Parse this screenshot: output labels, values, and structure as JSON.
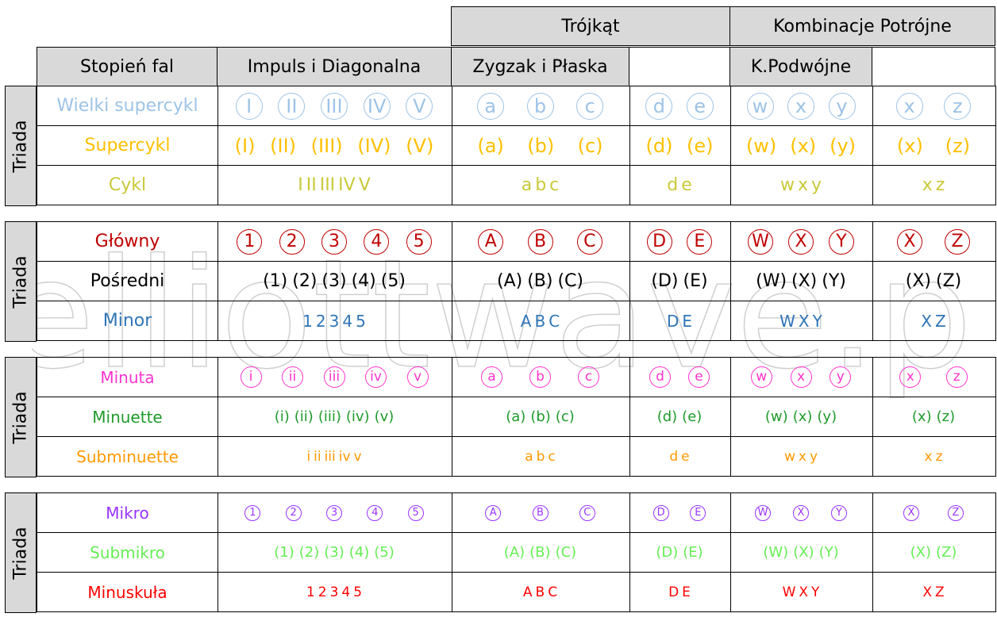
{
  "colors": {
    "header_bg": "#d9d9d9",
    "wielki": "#9dc3e6",
    "supercykl": "#ffc000",
    "cykl": "#c9c93a",
    "glowny": "#c00000",
    "posredni": "#000000",
    "minor": "#2e75b6",
    "minuta": "#ff33cc",
    "minuette": "#1f9a2a",
    "subminuette": "#ff9900",
    "mikro": "#9933ff",
    "submikro": "#66ee55",
    "minuskula": "#ff0000"
  },
  "header": {
    "trojkat": "Trójkąt",
    "kombinacje": "Kombinacje Potrójne",
    "stopien": "Stopień fal",
    "impuls": "Impuls i Diagonalna",
    "zygzak": "Zygzak i Płaska",
    "kpodwojne": "K.Podwójne"
  },
  "watermark": "elliottwave.pl",
  "blocks": [
    {
      "side": "Triada",
      "rows": [
        {
          "label": "Wielki supercykl",
          "color": "wielki",
          "style": "circle-big",
          "impuls": [
            "I",
            "II",
            "III",
            "IV",
            "V"
          ],
          "zygzak": [
            "a",
            "b",
            "c"
          ],
          "trojkat": [
            "d",
            "e"
          ],
          "podwojne": [
            "w",
            "x",
            "y"
          ],
          "potrojne": [
            "x",
            "z"
          ]
        },
        {
          "label": "Supercykl",
          "color": "supercykl",
          "style": "paren-big",
          "impuls": [
            "(I)",
            "(II)",
            "(III)",
            "(IV)",
            "(V)"
          ],
          "zygzak": [
            "(a)",
            "(b)",
            "(c)"
          ],
          "trojkat": [
            "(d)",
            "(e)"
          ],
          "podwojne": [
            "(w)",
            "(x)",
            "(y)"
          ],
          "potrojne": [
            "(x)",
            "(z)"
          ]
        },
        {
          "label": "Cykl",
          "color": "cykl",
          "style": "plain-big",
          "impuls": [
            "I",
            "II",
            "III",
            "IV",
            "V"
          ],
          "zygzak": [
            "a",
            "b",
            "c"
          ],
          "trojkat": [
            "d",
            "e"
          ],
          "podwojne": [
            "w",
            "x",
            "y"
          ],
          "potrojne": [
            "x",
            "z"
          ]
        }
      ]
    },
    {
      "side": "Triada",
      "rows": [
        {
          "label": "Główny",
          "color": "glowny",
          "style": "circle-med",
          "impuls": [
            "1",
            "2",
            "3",
            "4",
            "5"
          ],
          "zygzak": [
            "A",
            "B",
            "C"
          ],
          "trojkat": [
            "D",
            "E"
          ],
          "podwojne": [
            "W",
            "X",
            "Y"
          ],
          "potrojne": [
            "X",
            "Z"
          ]
        },
        {
          "label": "Pośredni",
          "color": "posredni",
          "style": "paren-med",
          "impuls": [
            "(1)",
            "(2)",
            "(3)",
            "(4)",
            "(5)"
          ],
          "zygzak": [
            "(A)",
            "(B)",
            "(C)"
          ],
          "trojkat": [
            "(D)",
            "(E)"
          ],
          "podwojne": [
            "(W)",
            "(X)",
            "(Y)"
          ],
          "potrojne": [
            "(X)",
            "(Z)"
          ]
        },
        {
          "label": "Minor",
          "color": "minor",
          "style": "plain-med",
          "impuls": [
            "1",
            "2",
            "3",
            "4",
            "5"
          ],
          "zygzak": [
            "A",
            "B",
            "C"
          ],
          "trojkat": [
            "D",
            "E"
          ],
          "podwojne": [
            "W",
            "X",
            "Y"
          ],
          "potrojne": [
            "X",
            "Z"
          ]
        }
      ]
    },
    {
      "side": "Triada",
      "rows": [
        {
          "label": "Minuta",
          "color": "minuta",
          "style": "circle-sm",
          "impuls": [
            "i",
            "ii",
            "iii",
            "iv",
            "v"
          ],
          "zygzak": [
            "a",
            "b",
            "c"
          ],
          "trojkat": [
            "d",
            "e"
          ],
          "podwojne": [
            "w",
            "x",
            "y"
          ],
          "potrojne": [
            "x",
            "z"
          ]
        },
        {
          "label": "Minuette",
          "color": "minuette",
          "style": "paren-sm",
          "impuls": [
            "(i)",
            "(ii)",
            "(iii)",
            "(iv)",
            "(v)"
          ],
          "zygzak": [
            "(a)",
            "(b)",
            "(c)"
          ],
          "trojkat": [
            "(d)",
            "(e)"
          ],
          "podwojne": [
            "(w)",
            "(x)",
            "(y)"
          ],
          "potrojne": [
            "(x)",
            "(z)"
          ]
        },
        {
          "label": "Subminuette",
          "color": "subminuette",
          "style": "plain-sm",
          "impuls": [
            "i",
            "ii",
            "iii",
            "iv",
            "v"
          ],
          "zygzak": [
            "a",
            "b",
            "c"
          ],
          "trojkat": [
            "d",
            "e"
          ],
          "podwojne": [
            "w",
            "x",
            "y"
          ],
          "potrojne": [
            "x",
            "z"
          ]
        }
      ]
    },
    {
      "side": "Triada",
      "rows": [
        {
          "label": "Mikro",
          "color": "mikro",
          "style": "circle-xs",
          "impuls": [
            "1",
            "2",
            "3",
            "4",
            "5"
          ],
          "zygzak": [
            "A",
            "B",
            "C"
          ],
          "trojkat": [
            "D",
            "E"
          ],
          "podwojne": [
            "W",
            "X",
            "Y"
          ],
          "potrojne": [
            "X",
            "Z"
          ]
        },
        {
          "label": "Submikro",
          "color": "submikro",
          "style": "paren-xs",
          "impuls": [
            "(1)",
            "(2)",
            "(3)",
            "(4)",
            "(5)"
          ],
          "zygzak": [
            "(A)",
            "(B)",
            "(C)"
          ],
          "trojkat": [
            "(D)",
            "(E)"
          ],
          "podwojne": [
            "(W)",
            "(X)",
            "(Y)"
          ],
          "potrojne": [
            "(X)",
            "(Z)"
          ]
        },
        {
          "label": "Minuskuła",
          "color": "minuskula",
          "style": "plain-xs",
          "impuls": [
            "1",
            "2",
            "3",
            "4",
            "5"
          ],
          "zygzak": [
            "A",
            "B",
            "C"
          ],
          "trojkat": [
            "D",
            "E"
          ],
          "podwojne": [
            "W",
            "X",
            "Y"
          ],
          "potrojne": [
            "X",
            "Z"
          ]
        }
      ]
    }
  ]
}
